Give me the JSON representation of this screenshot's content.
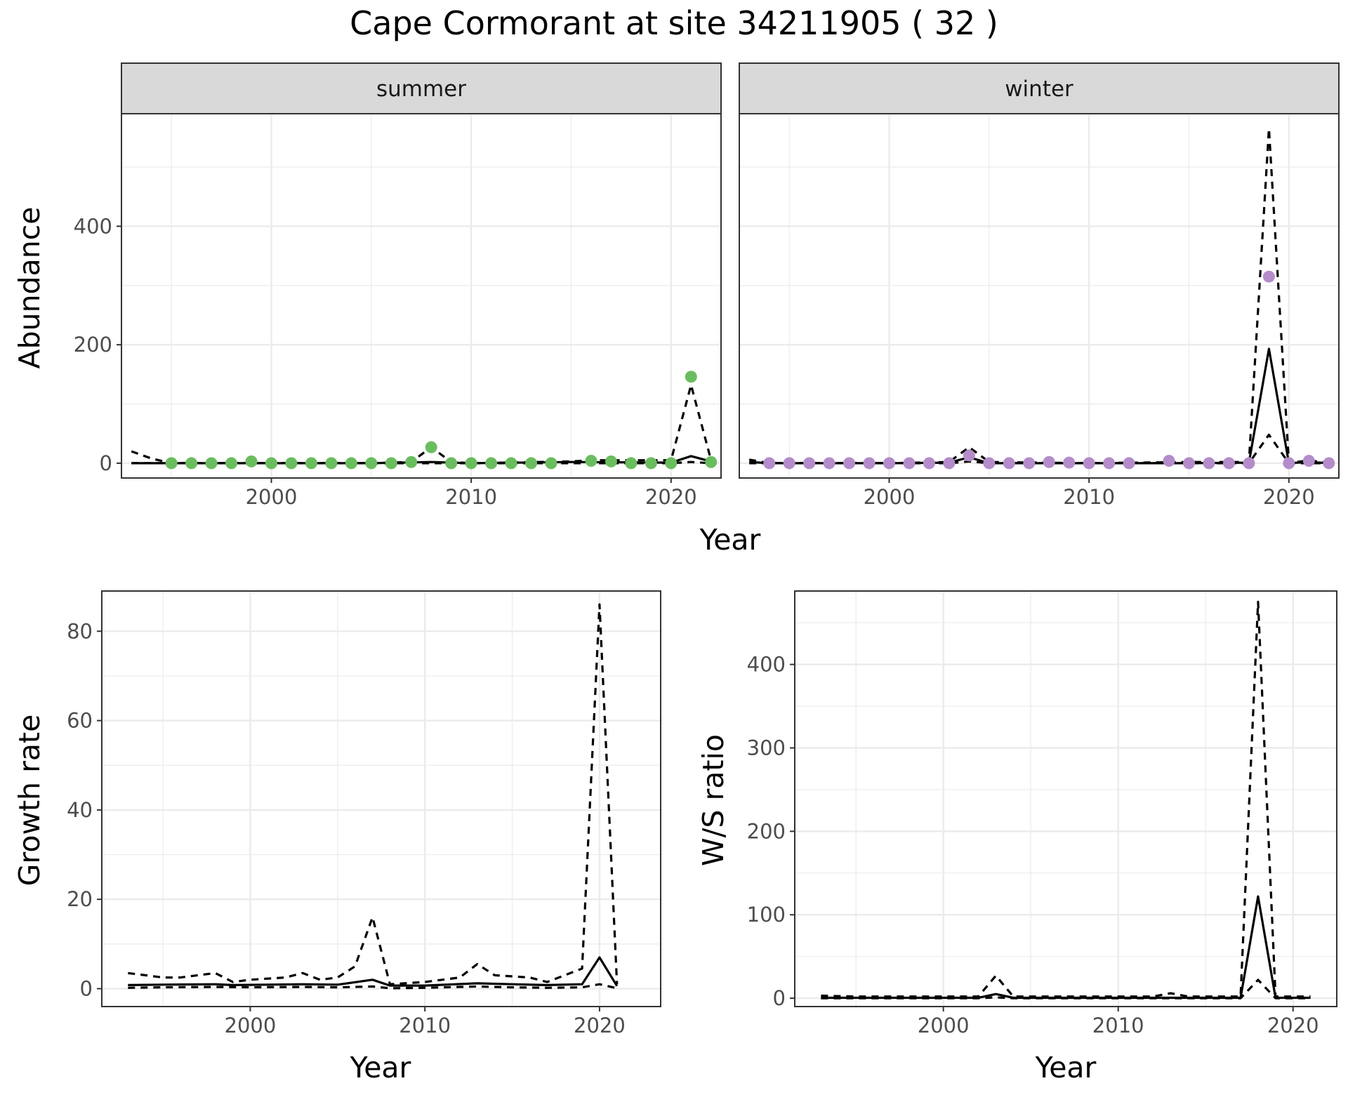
{
  "title": "Cape Cormorant at site 34211905 ( 32 )",
  "colors": {
    "summer_points": "#6abd5e",
    "winter_points": "#b48cca",
    "lines": "#000000",
    "grid": "#ebebeb",
    "strip_bg": "#d9d9d9"
  },
  "chart_data": [
    {
      "id": "abundance",
      "type": "line",
      "facets": [
        "summer",
        "winter"
      ],
      "xlabel": "Year",
      "ylabel": "Abundance",
      "xlim": [
        1992.5,
        2022.5
      ],
      "ylim": [
        -25,
        590
      ],
      "xticks": [
        2000,
        2010,
        2020
      ],
      "yticks": [
        0,
        200,
        400
      ],
      "grid": true,
      "panels": [
        {
          "facet": "summer",
          "points": {
            "x": [
              1995,
              1996,
              1997,
              1998,
              1999,
              2000,
              2001,
              2002,
              2003,
              2004,
              2005,
              2006,
              2007,
              2008,
              2009,
              2010,
              2011,
              2012,
              2013,
              2014,
              2016,
              2017,
              2018,
              2019,
              2020,
              2021,
              2022
            ],
            "y": [
              0,
              0,
              0,
              0,
              3,
              0,
              0,
              0,
              0,
              0,
              0,
              0,
              2,
              27,
              0,
              0,
              0,
              0,
              0,
              0,
              4,
              3,
              0,
              0,
              0,
              146,
              2
            ]
          },
          "series": [
            {
              "style": "solid",
              "x": [
                1993,
                1995,
                2000,
                2005,
                2008,
                2010,
                2015,
                2020,
                2021,
                2022
              ],
              "y": [
                0,
                0,
                0,
                0,
                2,
                0,
                2,
                1,
                12,
                3
              ]
            },
            {
              "style": "dashed",
              "x": [
                1993,
                1994,
                1995,
                2000,
                2005,
                2007,
                2008,
                2009,
                2010,
                2015,
                2016,
                2020,
                2021,
                2022
              ],
              "y": [
                20,
                8,
                0,
                0,
                0,
                2,
                27,
                2,
                0,
                3,
                5,
                5,
                132,
                5
              ]
            },
            {
              "style": "dashed",
              "x": [
                1993,
                1995,
                2000,
                2005,
                2010,
                2015,
                2020,
                2021,
                2022
              ],
              "y": [
                0,
                0,
                0,
                0,
                0,
                0,
                0,
                2,
                0
              ]
            }
          ]
        },
        {
          "facet": "winter",
          "points": {
            "x": [
              1994,
              1995,
              1996,
              1997,
              1998,
              1999,
              2000,
              2001,
              2002,
              2003,
              2004,
              2005,
              2006,
              2007,
              2008,
              2009,
              2010,
              2011,
              2012,
              2014,
              2015,
              2016,
              2017,
              2018,
              2019,
              2020,
              2021,
              2022
            ],
            "y": [
              0,
              0,
              0,
              0,
              0,
              0,
              0,
              0,
              0,
              0,
              13,
              0,
              0,
              0,
              2,
              1,
              0,
              0,
              0,
              4,
              0,
              0,
              0,
              0,
              315,
              0,
              4,
              0
            ]
          },
          "series": [
            {
              "style": "solid",
              "x": [
                1993,
                1994,
                2000,
                2003,
                2004,
                2005,
                2010,
                2015,
                2018,
                2019,
                2020,
                2021,
                2022
              ],
              "y": [
                2,
                0,
                0,
                1,
                10,
                0,
                0,
                0,
                1,
                193,
                0,
                2,
                0
              ]
            },
            {
              "style": "dashed",
              "x": [
                1993,
                1994,
                2000,
                2003,
                2004,
                2005,
                2010,
                2015,
                2018,
                2019,
                2020,
                2021,
                2022
              ],
              "y": [
                6,
                0,
                0,
                2,
                27,
                2,
                0,
                2,
                2,
                565,
                0,
                5,
                0
              ]
            },
            {
              "style": "dashed",
              "x": [
                1993,
                1994,
                2000,
                2003,
                2004,
                2005,
                2010,
                2015,
                2018,
                2019,
                2020,
                2021,
                2022
              ],
              "y": [
                0,
                0,
                0,
                0,
                3,
                0,
                0,
                0,
                0,
                48,
                0,
                0,
                0
              ]
            }
          ]
        }
      ]
    },
    {
      "id": "growth",
      "type": "line",
      "xlabel": "Year",
      "ylabel": "Growth rate",
      "xlim": [
        1991.5,
        2023.5
      ],
      "ylim": [
        -4,
        89
      ],
      "xticks": [
        2000,
        2010,
        2020
      ],
      "yticks": [
        0,
        20,
        40,
        60,
        80
      ],
      "grid": true,
      "series": [
        {
          "style": "solid",
          "x": [
            1993,
            1995,
            1998,
            1999,
            2003,
            2005,
            2007,
            2008,
            2010,
            2013,
            2015,
            2017,
            2019,
            2020,
            2021
          ],
          "y": [
            0.8,
            0.9,
            1.0,
            0.8,
            1.0,
            0.9,
            2.0,
            0.7,
            0.7,
            1.2,
            1.0,
            0.8,
            1.0,
            7.0,
            0.6
          ]
        },
        {
          "style": "dashed",
          "x": [
            1993,
            1994,
            1995,
            1996,
            1998,
            1999,
            2000,
            2002,
            2003,
            2004,
            2005,
            2006,
            2007,
            2008,
            2010,
            2012,
            2013,
            2014,
            2016,
            2017,
            2019,
            2020,
            2021
          ],
          "y": [
            3.5,
            3.0,
            2.5,
            2.5,
            3.5,
            1.5,
            2.0,
            2.5,
            3.5,
            2.0,
            2.5,
            5.0,
            16.0,
            1.0,
            1.5,
            2.5,
            5.5,
            3.0,
            2.5,
            1.5,
            4.5,
            86.0,
            1.0
          ]
        },
        {
          "style": "dashed",
          "x": [
            1993,
            1995,
            1998,
            2000,
            2003,
            2005,
            2007,
            2008,
            2010,
            2013,
            2015,
            2017,
            2019,
            2020,
            2021
          ],
          "y": [
            0.2,
            0.3,
            0.4,
            0.3,
            0.4,
            0.3,
            0.5,
            0.1,
            0.2,
            0.5,
            0.3,
            0.2,
            0.3,
            1.0,
            0.1
          ]
        }
      ]
    },
    {
      "id": "ws_ratio",
      "type": "line",
      "xlabel": "Year",
      "ylabel": "W/S ratio",
      "xlim": [
        1991.5,
        2022.5
      ],
      "ylim": [
        -10,
        488
      ],
      "xticks": [
        2000,
        2010,
        2020
      ],
      "yticks": [
        0,
        100,
        200,
        300,
        400
      ],
      "grid": true,
      "series": [
        {
          "style": "solid",
          "x": [
            1993,
            1995,
            2000,
            2002,
            2003,
            2004,
            2005,
            2010,
            2015,
            2017,
            2018,
            2019,
            2020,
            2021
          ],
          "y": [
            0.5,
            0.5,
            0.5,
            0.5,
            5,
            0.5,
            0.5,
            0.5,
            0.5,
            0.5,
            122,
            0.5,
            0.5,
            0.5
          ]
        },
        {
          "style": "dashed",
          "x": [
            1993,
            1995,
            2000,
            2002,
            2003,
            2004,
            2005,
            2010,
            2012,
            2013,
            2014,
            2015,
            2017,
            2018,
            2019,
            2020,
            2021
          ],
          "y": [
            3,
            2,
            2,
            2,
            27,
            2,
            2,
            2,
            2,
            6,
            2,
            2,
            2,
            475,
            2,
            2,
            2
          ]
        },
        {
          "style": "dashed",
          "x": [
            1993,
            1995,
            2000,
            2002,
            2003,
            2004,
            2005,
            2010,
            2015,
            2017,
            2018,
            2019,
            2020,
            2021
          ],
          "y": [
            0,
            0,
            0,
            0,
            1,
            0,
            0,
            0,
            0,
            0,
            22,
            0,
            0,
            0
          ]
        }
      ]
    }
  ]
}
